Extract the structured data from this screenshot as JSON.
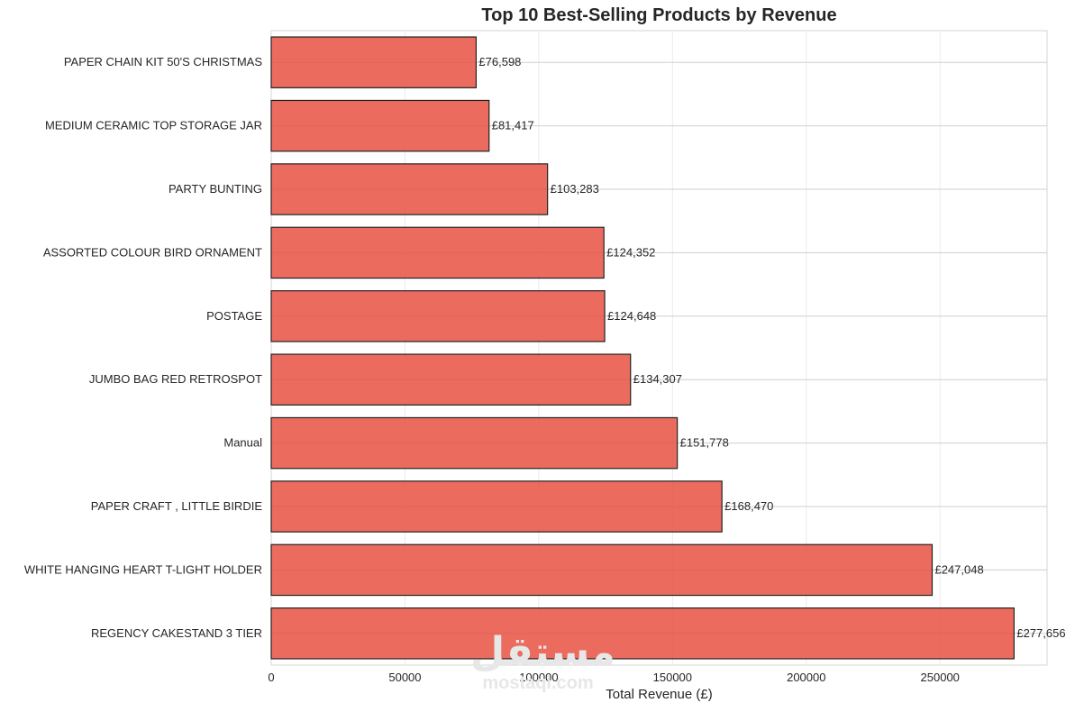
{
  "chart_data": {
    "type": "bar",
    "orientation": "horizontal",
    "title": "Top 10 Best-Selling Products by Revenue",
    "xlabel": "Total Revenue (£)",
    "ylabel": "",
    "xlim": [
      0,
      290000
    ],
    "xticks": [
      0,
      50000,
      100000,
      150000,
      200000,
      250000
    ],
    "xtick_labels": [
      "0",
      "50000",
      "100000",
      "150000",
      "200000",
      "250000"
    ],
    "grid": true,
    "categories": [
      "PAPER CHAIN KIT 50'S CHRISTMAS",
      "MEDIUM CERAMIC TOP STORAGE JAR",
      "PARTY BUNTING",
      "ASSORTED COLOUR BIRD ORNAMENT",
      "POSTAGE",
      "JUMBO BAG RED RETROSPOT",
      "Manual",
      "PAPER CRAFT , LITTLE BIRDIE",
      "WHITE HANGING HEART T-LIGHT HOLDER",
      "REGENCY CAKESTAND 3 TIER"
    ],
    "values": [
      76598,
      81417,
      103283,
      124352,
      124648,
      134307,
      151778,
      168470,
      247048,
      277656
    ],
    "value_labels": [
      "£76,598",
      "£81,417",
      "£103,283",
      "£124,352",
      "£124,648",
      "£134,307",
      "£151,778",
      "£168,470",
      "£247,048",
      "£277,656"
    ],
    "bar_color": "#e74c3c",
    "edge_color": "#222222"
  },
  "watermark": {
    "arabic": "مستقل",
    "latin": "mostaql.com"
  }
}
